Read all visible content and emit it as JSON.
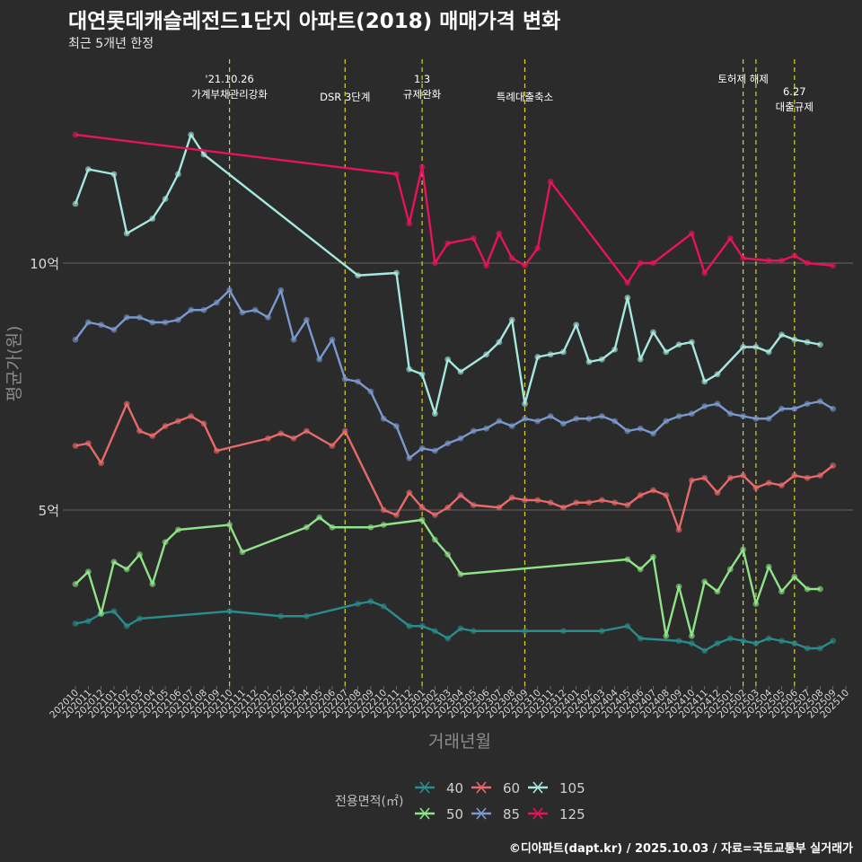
{
  "page": {
    "title": "대연롯데캐슬레전드1단지 아파트(2018) 매매가격 변화",
    "subtitle": "최근 5개년 한정",
    "caption": "©디아파트(dapt.kr) / 2025.10.03 / 자료=국토교통부 실거래가"
  },
  "colors": {
    "background": "#2b2b2b",
    "gridline": "#7a7a7a",
    "event_line": "#d4d42a",
    "axis_text": "#d9d9d9",
    "axis_title": "#8c8c8c"
  },
  "chart_data": {
    "type": "line",
    "xlabel": "거래년월",
    "ylabel": "평균가(원)",
    "x_tick_labels": [
      "202010",
      "202011",
      "202012",
      "202101",
      "202102",
      "202103",
      "202104",
      "202105",
      "202106",
      "202107",
      "202108",
      "202109",
      "202110",
      "202111",
      "202112",
      "202201",
      "202202",
      "202203",
      "202204",
      "202205",
      "202206",
      "202207",
      "202208",
      "202209",
      "202210",
      "202211",
      "202212",
      "202301",
      "202302",
      "202303",
      "202304",
      "202305",
      "202306",
      "202307",
      "202308",
      "202309",
      "202310",
      "202311",
      "202312",
      "202401",
      "202402",
      "202403",
      "202404",
      "202405",
      "202406",
      "202407",
      "202408",
      "202409",
      "202410",
      "202411",
      "202412",
      "202501",
      "202502",
      "202503",
      "202504",
      "202505",
      "202506",
      "202507",
      "202508",
      "202509",
      "202510"
    ],
    "y_ticks": [
      {
        "value": 5,
        "label": "5억"
      },
      {
        "value": 10,
        "label": "10억"
      }
    ],
    "ylim": [
      1.5,
      14.5
    ],
    "legend": {
      "title": "전용면적(㎡)",
      "position": "bottom"
    },
    "events": [
      {
        "month": "202110",
        "label": "'21.10.26\n가계부채관리강화",
        "row": 0
      },
      {
        "month": "202207",
        "label": "DSR 3단계",
        "row": 1
      },
      {
        "month": "202301",
        "label": "1.3\n규제완화",
        "row": 0
      },
      {
        "month": "202309",
        "label": "특례대출축소",
        "row": 1
      },
      {
        "month": "202502",
        "label": "토허제 해제",
        "row": 0
      },
      {
        "month": "202503",
        "label": "",
        "row": 0
      },
      {
        "month": "202506",
        "label": "6.27\n대출규제",
        "row": 0.7
      }
    ],
    "series": [
      {
        "name": "40",
        "color": "#2a8c8c",
        "points": [
          [
            "202010",
            2.7
          ],
          [
            "202011",
            2.75
          ],
          [
            "202012",
            2.9
          ],
          [
            "202101",
            2.95
          ],
          [
            "202102",
            2.65
          ],
          [
            "202103",
            2.8
          ],
          [
            "202110",
            2.95
          ],
          [
            "202202",
            2.85
          ],
          [
            "202204",
            2.85
          ],
          [
            "202208",
            3.1
          ],
          [
            "202209",
            3.15
          ],
          [
            "202210",
            3.05
          ],
          [
            "202212",
            2.65
          ],
          [
            "202301",
            2.65
          ],
          [
            "202302",
            2.55
          ],
          [
            "202303",
            2.4
          ],
          [
            "202304",
            2.6
          ],
          [
            "202305",
            2.55
          ],
          [
            "202309",
            2.55
          ],
          [
            "202312",
            2.55
          ],
          [
            "202403",
            2.55
          ],
          [
            "202405",
            2.65
          ],
          [
            "202406",
            2.4
          ],
          [
            "202409",
            2.35
          ],
          [
            "202410",
            2.3
          ],
          [
            "202411",
            2.15
          ],
          [
            "202412",
            2.3
          ],
          [
            "202501",
            2.4
          ],
          [
            "202502",
            2.35
          ],
          [
            "202503",
            2.3
          ],
          [
            "202504",
            2.4
          ],
          [
            "202505",
            2.35
          ],
          [
            "202506",
            2.3
          ],
          [
            "202507",
            2.2
          ],
          [
            "202508",
            2.2
          ],
          [
            "202509",
            2.35
          ]
        ]
      },
      {
        "name": "50",
        "color": "#8fe388",
        "points": [
          [
            "202010",
            3.5
          ],
          [
            "202011",
            3.75
          ],
          [
            "202012",
            2.9
          ],
          [
            "202101",
            3.95
          ],
          [
            "202102",
            3.8
          ],
          [
            "202103",
            4.1
          ],
          [
            "202104",
            3.5
          ],
          [
            "202105",
            4.35
          ],
          [
            "202106",
            4.6
          ],
          [
            "202110",
            4.7
          ],
          [
            "202111",
            4.15
          ],
          [
            "202204",
            4.65
          ],
          [
            "202205",
            4.85
          ],
          [
            "202206",
            4.65
          ],
          [
            "202209",
            4.65
          ],
          [
            "202210",
            4.7
          ],
          [
            "202301",
            4.8
          ],
          [
            "202302",
            4.4
          ],
          [
            "202303",
            4.1
          ],
          [
            "202304",
            3.7
          ],
          [
            "202405",
            4.0
          ],
          [
            "202406",
            3.8
          ],
          [
            "202407",
            4.05
          ],
          [
            "202408",
            2.45
          ],
          [
            "202409",
            3.45
          ],
          [
            "202410",
            2.45
          ],
          [
            "202411",
            3.55
          ],
          [
            "202412",
            3.35
          ],
          [
            "202501",
            3.8
          ],
          [
            "202502",
            4.2
          ],
          [
            "202503",
            3.1
          ],
          [
            "202504",
            3.85
          ],
          [
            "202505",
            3.35
          ],
          [
            "202506",
            3.65
          ],
          [
            "202507",
            3.4
          ],
          [
            "202508",
            3.4
          ]
        ]
      },
      {
        "name": "60",
        "color": "#e86a6a",
        "points": [
          [
            "202010",
            6.3
          ],
          [
            "202011",
            6.35
          ],
          [
            "202012",
            5.95
          ],
          [
            "202102",
            7.15
          ],
          [
            "202103",
            6.6
          ],
          [
            "202104",
            6.5
          ],
          [
            "202105",
            6.7
          ],
          [
            "202106",
            6.8
          ],
          [
            "202107",
            6.9
          ],
          [
            "202108",
            6.75
          ],
          [
            "202109",
            6.2
          ],
          [
            "202201",
            6.45
          ],
          [
            "202202",
            6.55
          ],
          [
            "202203",
            6.45
          ],
          [
            "202204",
            6.6
          ],
          [
            "202206",
            6.3
          ],
          [
            "202207",
            6.6
          ],
          [
            "202210",
            5.0
          ],
          [
            "202211",
            4.9
          ],
          [
            "202212",
            5.35
          ],
          [
            "202301",
            5.05
          ],
          [
            "202302",
            4.9
          ],
          [
            "202303",
            5.05
          ],
          [
            "202304",
            5.3
          ],
          [
            "202305",
            5.1
          ],
          [
            "202307",
            5.05
          ],
          [
            "202308",
            5.25
          ],
          [
            "202309",
            5.2
          ],
          [
            "202310",
            5.2
          ],
          [
            "202311",
            5.15
          ],
          [
            "202312",
            5.05
          ],
          [
            "202401",
            5.15
          ],
          [
            "202402",
            5.15
          ],
          [
            "202403",
            5.2
          ],
          [
            "202404",
            5.15
          ],
          [
            "202405",
            5.1
          ],
          [
            "202406",
            5.3
          ],
          [
            "202407",
            5.4
          ],
          [
            "202408",
            5.3
          ],
          [
            "202409",
            4.6
          ],
          [
            "202410",
            5.6
          ],
          [
            "202411",
            5.65
          ],
          [
            "202412",
            5.35
          ],
          [
            "202501",
            5.65
          ],
          [
            "202502",
            5.7
          ],
          [
            "202503",
            5.45
          ],
          [
            "202504",
            5.55
          ],
          [
            "202505",
            5.5
          ],
          [
            "202506",
            5.7
          ],
          [
            "202507",
            5.65
          ],
          [
            "202508",
            5.7
          ],
          [
            "202509",
            5.9
          ]
        ]
      },
      {
        "name": "85",
        "color": "#7a9acf",
        "points": [
          [
            "202010",
            8.45
          ],
          [
            "202011",
            8.8
          ],
          [
            "202012",
            8.75
          ],
          [
            "202101",
            8.65
          ],
          [
            "202102",
            8.9
          ],
          [
            "202103",
            8.9
          ],
          [
            "202104",
            8.8
          ],
          [
            "202105",
            8.8
          ],
          [
            "202106",
            8.85
          ],
          [
            "202107",
            9.05
          ],
          [
            "202108",
            9.05
          ],
          [
            "202109",
            9.2
          ],
          [
            "202110",
            9.45
          ],
          [
            "202111",
            9.0
          ],
          [
            "202112",
            9.05
          ],
          [
            "202201",
            8.9
          ],
          [
            "202202",
            9.45
          ],
          [
            "202203",
            8.45
          ],
          [
            "202204",
            8.85
          ],
          [
            "202205",
            8.05
          ],
          [
            "202206",
            8.45
          ],
          [
            "202207",
            7.65
          ],
          [
            "202208",
            7.6
          ],
          [
            "202209",
            7.4
          ],
          [
            "202210",
            6.85
          ],
          [
            "202211",
            6.7
          ],
          [
            "202212",
            6.05
          ],
          [
            "202301",
            6.25
          ],
          [
            "202302",
            6.2
          ],
          [
            "202303",
            6.35
          ],
          [
            "202304",
            6.45
          ],
          [
            "202305",
            6.6
          ],
          [
            "202306",
            6.65
          ],
          [
            "202307",
            6.8
          ],
          [
            "202308",
            6.7
          ],
          [
            "202309",
            6.85
          ],
          [
            "202310",
            6.8
          ],
          [
            "202311",
            6.9
          ],
          [
            "202312",
            6.75
          ],
          [
            "202401",
            6.85
          ],
          [
            "202402",
            6.85
          ],
          [
            "202403",
            6.9
          ],
          [
            "202404",
            6.8
          ],
          [
            "202405",
            6.6
          ],
          [
            "202406",
            6.65
          ],
          [
            "202407",
            6.55
          ],
          [
            "202408",
            6.8
          ],
          [
            "202409",
            6.9
          ],
          [
            "202410",
            6.95
          ],
          [
            "202411",
            7.1
          ],
          [
            "202412",
            7.15
          ],
          [
            "202501",
            6.95
          ],
          [
            "202502",
            6.9
          ],
          [
            "202503",
            6.85
          ],
          [
            "202504",
            6.85
          ],
          [
            "202505",
            7.05
          ],
          [
            "202506",
            7.05
          ],
          [
            "202507",
            7.15
          ],
          [
            "202508",
            7.2
          ],
          [
            "202509",
            7.05
          ]
        ]
      },
      {
        "name": "105",
        "color": "#a6e8e0",
        "points": [
          [
            "202010",
            11.2
          ],
          [
            "202011",
            11.9
          ],
          [
            "202101",
            11.8
          ],
          [
            "202102",
            10.6
          ],
          [
            "202104",
            10.9
          ],
          [
            "202105",
            11.3
          ],
          [
            "202106",
            11.8
          ],
          [
            "202107",
            12.6
          ],
          [
            "202108",
            12.2
          ],
          [
            "202208",
            9.75
          ],
          [
            "202211",
            9.8
          ],
          [
            "202212",
            7.85
          ],
          [
            "202301",
            7.75
          ],
          [
            "202302",
            6.95
          ],
          [
            "202303",
            8.05
          ],
          [
            "202304",
            7.8
          ],
          [
            "202306",
            8.15
          ],
          [
            "202307",
            8.4
          ],
          [
            "202308",
            8.85
          ],
          [
            "202309",
            7.15
          ],
          [
            "202310",
            8.1
          ],
          [
            "202311",
            8.15
          ],
          [
            "202312",
            8.2
          ],
          [
            "202401",
            8.75
          ],
          [
            "202402",
            8.0
          ],
          [
            "202403",
            8.05
          ],
          [
            "202404",
            8.25
          ],
          [
            "202405",
            9.3
          ],
          [
            "202406",
            8.05
          ],
          [
            "202407",
            8.6
          ],
          [
            "202408",
            8.2
          ],
          [
            "202409",
            8.35
          ],
          [
            "202410",
            8.4
          ],
          [
            "202411",
            7.6
          ],
          [
            "202412",
            7.75
          ],
          [
            "202502",
            8.3
          ],
          [
            "202503",
            8.3
          ],
          [
            "202504",
            8.2
          ],
          [
            "202505",
            8.55
          ],
          [
            "202506",
            8.45
          ],
          [
            "202507",
            8.4
          ],
          [
            "202508",
            8.35
          ]
        ]
      },
      {
        "name": "125",
        "color": "#e6145a",
        "points": [
          [
            "202010",
            12.6
          ],
          [
            "202211",
            11.8
          ],
          [
            "202212",
            10.8
          ],
          [
            "202301",
            11.95
          ],
          [
            "202302",
            10.0
          ],
          [
            "202303",
            10.4
          ],
          [
            "202305",
            10.5
          ],
          [
            "202306",
            9.95
          ],
          [
            "202307",
            10.6
          ],
          [
            "202308",
            10.1
          ],
          [
            "202309",
            9.95
          ],
          [
            "202310",
            10.3
          ],
          [
            "202311",
            11.65
          ],
          [
            "202405",
            9.6
          ],
          [
            "202406",
            10.0
          ],
          [
            "202407",
            10.0
          ],
          [
            "202410",
            10.6
          ],
          [
            "202411",
            9.8
          ],
          [
            "202501",
            10.5
          ],
          [
            "202502",
            10.1
          ],
          [
            "202504",
            10.05
          ],
          [
            "202505",
            10.05
          ],
          [
            "202506",
            10.15
          ],
          [
            "202507",
            10.0
          ],
          [
            "202509",
            9.95
          ]
        ]
      }
    ]
  }
}
